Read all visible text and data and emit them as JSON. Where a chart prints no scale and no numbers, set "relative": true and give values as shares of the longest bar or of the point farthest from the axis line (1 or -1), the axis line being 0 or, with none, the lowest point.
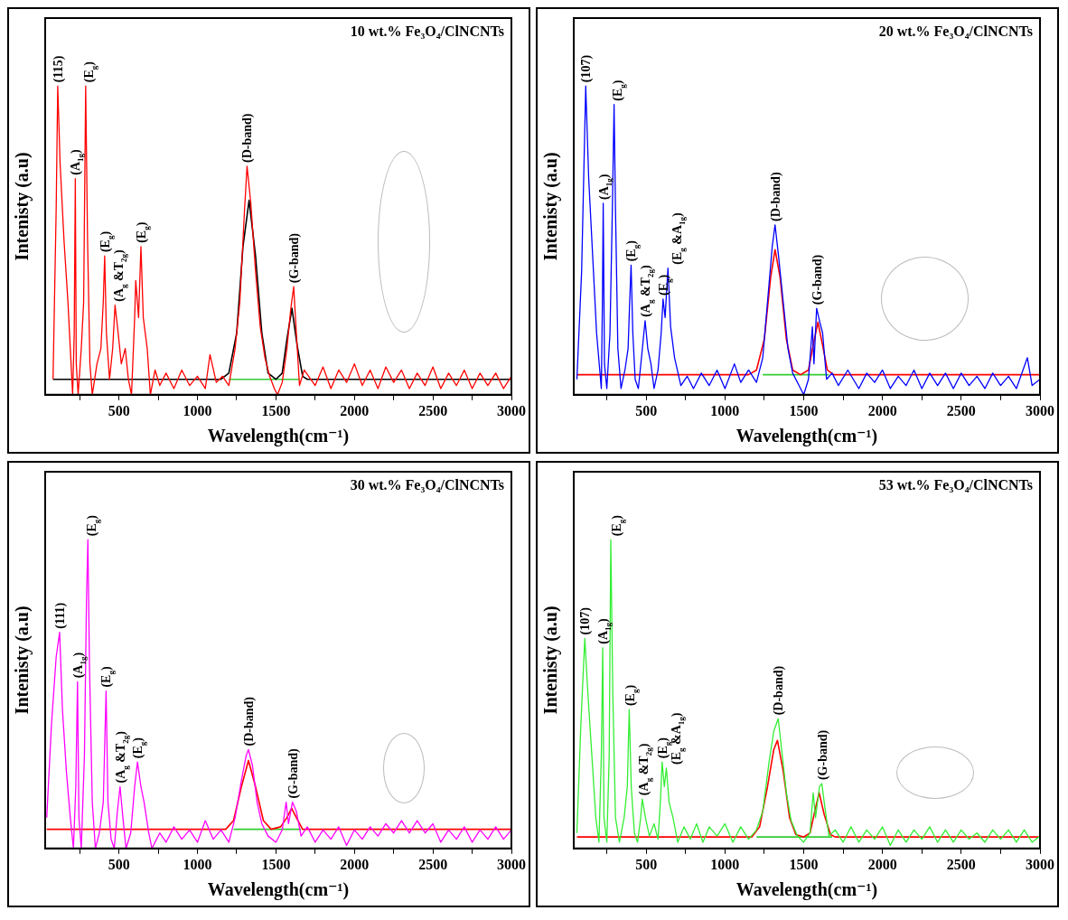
{
  "chart_data": [
    {
      "type": "line",
      "title": "10 wt.% Fe₃O₄/ClNCNTs",
      "xlabel": "Wavelength(cm⁻¹)",
      "ylabel": "Intenisty (a.u)",
      "relative": true,
      "marker": "none",
      "xlim": [
        30,
        3000
      ],
      "xticks": [
        {
          "value": 250,
          "label": null
        },
        500,
        {
          "value": 750,
          "label": null
        },
        1000,
        {
          "value": 1250,
          "label": null
        },
        1500,
        {
          "value": 1750,
          "label": null
        },
        2000,
        {
          "value": 2250,
          "label": null
        },
        2500,
        {
          "value": 2750,
          "label": null
        },
        3000
      ],
      "series": [
        {
          "type": "line",
          "color": "#ff0000",
          "x": [
            80,
            100,
            110,
            125,
            150,
            175,
            195,
            205,
            215,
            222,
            228,
            240,
            260,
            275,
            288,
            300,
            315,
            330,
            360,
            385,
            400,
            409,
            420,
            440,
            460,
            475,
            495,
            515,
            540,
            560,
            580,
            600,
            607,
            625,
            640,
            655,
            680,
            700,
            730,
            760,
            800,
            850,
            900,
            950,
            1000,
            1050,
            1080,
            1120,
            1160,
            1200,
            1240,
            1270,
            1300,
            1316,
            1340,
            1370,
            1400,
            1430,
            1460,
            1490,
            1510,
            1540,
            1570,
            1595,
            1613,
            1630,
            1650,
            1680,
            1750,
            1800,
            1850,
            1900,
            1950,
            2000,
            2050,
            2100,
            2150,
            2200,
            2250,
            2300,
            2350,
            2400,
            2450,
            2500,
            2550,
            2600,
            2650,
            2700,
            2750,
            2800,
            2850,
            2900,
            2950,
            3000
          ],
          "values": [
            0.05,
            0.6,
            1.0,
            0.75,
            0.5,
            0.3,
            0.1,
            0.0,
            0.2,
            0.7,
            0.1,
            0.0,
            0.15,
            0.3,
            1.0,
            0.5,
            0.1,
            0.0,
            0.1,
            0.15,
            0.3,
            0.45,
            0.2,
            0.05,
            0.15,
            0.29,
            0.2,
            0.1,
            0.15,
            0.05,
            0.0,
            0.25,
            0.37,
            0.25,
            0.48,
            0.25,
            0.15,
            0.0,
            0.08,
            0.03,
            0.07,
            0.02,
            0.08,
            0.03,
            0.06,
            0.02,
            0.13,
            0.04,
            0.06,
            0.03,
            0.15,
            0.3,
            0.6,
            0.74,
            0.62,
            0.4,
            0.22,
            0.12,
            0.06,
            0.02,
            0.0,
            0.04,
            0.15,
            0.28,
            0.35,
            0.2,
            0.03,
            0.08,
            0.03,
            0.09,
            0.02,
            0.08,
            0.04,
            0.1,
            0.03,
            0.08,
            0.02,
            0.09,
            0.04,
            0.08,
            0.02,
            0.07,
            0.03,
            0.09,
            0.02,
            0.07,
            0.03,
            0.08,
            0.02,
            0.07,
            0.03,
            0.07,
            0.02,
            0.06
          ]
        },
        {
          "type": "line",
          "color": "#000000",
          "x": [
            80,
            1150,
            1200,
            1250,
            1290,
            1329,
            1370,
            1410,
            1450,
            1500,
            1540,
            1570,
            1602,
            1635,
            1670,
            1700,
            3000
          ],
          "values": [
            0.05,
            0.05,
            0.07,
            0.2,
            0.48,
            0.63,
            0.45,
            0.2,
            0.07,
            0.05,
            0.07,
            0.18,
            0.28,
            0.16,
            0.06,
            0.05,
            0.05
          ]
        },
        {
          "type": "line",
          "color": "#33cc33",
          "x": [
            1200,
            1650
          ],
          "values": [
            0.05,
            0.05
          ]
        }
      ],
      "annotations": [
        {
          "text": "(115)",
          "x": 110,
          "y": 1.0
        },
        {
          "text": "(A$_{1g}$)",
          "x": 222,
          "y": 0.7
        },
        {
          "text": "(E$_{g}$)",
          "x": 288,
          "y": 1.0
        },
        {
          "text": "(E$_{g}$)",
          "x": 409,
          "y": 0.45
        },
        {
          "text": "(A$_{g}$ &T$_{2g}$)",
          "x": 475,
          "y": 0.29
        },
        {
          "text": "(E$_{g}$)",
          "x": 640,
          "y": 0.48
        },
        {
          "text": "(D-band)",
          "x": 1316,
          "y": 0.74
        },
        {
          "text": "(G-band)",
          "x": 1613,
          "y": 0.35
        }
      ]
    },
    {
      "type": "line",
      "title": "20 wt.% Fe₃O₄/ClNCNTs",
      "xlabel": "Wavelength(cm⁻¹)",
      "ylabel": "Intenisty (a.u)",
      "relative": true,
      "marker": "none",
      "xlim": [
        40,
        3000
      ],
      "xticks": [
        {
          "value": 250,
          "label": null
        },
        500,
        {
          "value": 750,
          "label": null
        },
        1000,
        {
          "value": 1250,
          "label": null
        },
        1500,
        {
          "value": 1750,
          "label": null
        },
        2000,
        {
          "value": 2250,
          "label": null
        },
        2500,
        {
          "value": 2750,
          "label": null
        },
        3000
      ],
      "series": [
        {
          "type": "line",
          "color": "#0000ff",
          "x": [
            60,
            90,
            116,
            135,
            160,
            185,
            205,
            215,
            222,
            227,
            235,
            250,
            270,
            285,
            296,
            305,
            320,
            340,
            365,
            385,
            395,
            404,
            415,
            430,
            450,
            470,
            493,
            510,
            530,
            550,
            575,
            595,
            607,
            620,
            638,
            655,
            680,
            720,
            760,
            800,
            850,
            900,
            950,
            1000,
            1060,
            1100,
            1150,
            1200,
            1240,
            1270,
            1300,
            1318,
            1340,
            1370,
            1400,
            1430,
            1470,
            1500,
            1530,
            1555,
            1565,
            1582,
            1600,
            1620,
            1645,
            1680,
            1720,
            1780,
            1850,
            1900,
            1950,
            2000,
            2050,
            2100,
            2150,
            2200,
            2250,
            2300,
            2350,
            2400,
            2450,
            2500,
            2550,
            2600,
            2650,
            2700,
            2750,
            2800,
            2850,
            2920,
            2950,
            3000
          ],
          "values": [
            0.05,
            0.4,
            1.0,
            0.7,
            0.45,
            0.2,
            0.08,
            0.02,
            0.3,
            0.62,
            0.1,
            0.02,
            0.2,
            0.6,
            0.94,
            0.6,
            0.15,
            0.02,
            0.08,
            0.15,
            0.3,
            0.42,
            0.2,
            0.05,
            0.02,
            0.12,
            0.24,
            0.15,
            0.1,
            0.02,
            0.08,
            0.2,
            0.31,
            0.25,
            0.41,
            0.22,
            0.12,
            0.03,
            0.06,
            0.02,
            0.07,
            0.03,
            0.08,
            0.02,
            0.1,
            0.04,
            0.08,
            0.04,
            0.12,
            0.3,
            0.48,
            0.55,
            0.45,
            0.3,
            0.15,
            0.07,
            0.03,
            0.0,
            0.05,
            0.22,
            0.1,
            0.28,
            0.24,
            0.2,
            0.05,
            0.07,
            0.03,
            0.08,
            0.02,
            0.07,
            0.04,
            0.08,
            0.02,
            0.06,
            0.03,
            0.08,
            0.02,
            0.07,
            0.03,
            0.07,
            0.02,
            0.07,
            0.03,
            0.06,
            0.02,
            0.07,
            0.03,
            0.06,
            0.02,
            0.12,
            0.03,
            0.05
          ]
        },
        {
          "type": "line",
          "color": "#ff0000",
          "x": [
            60,
            1150,
            1200,
            1250,
            1290,
            1318,
            1350,
            1390,
            1430,
            1480,
            1530,
            1560,
            1590,
            1620,
            1650,
            1690,
            3000
          ],
          "values": [
            0.065,
            0.065,
            0.08,
            0.18,
            0.38,
            0.47,
            0.38,
            0.18,
            0.08,
            0.065,
            0.08,
            0.16,
            0.235,
            0.16,
            0.08,
            0.065,
            0.065
          ]
        },
        {
          "type": "line",
          "color": "#33cc33",
          "x": [
            1240,
            1660
          ],
          "values": [
            0.065,
            0.065
          ]
        }
      ],
      "annotations": [
        {
          "text": "(107)",
          "x": 116,
          "y": 1.0
        },
        {
          "text": "(A$_{1g}$)",
          "x": 227,
          "y": 0.62
        },
        {
          "text": "(E$_{g}$)",
          "x": 296,
          "y": 0.94
        },
        {
          "text": "(E$_{g}$)",
          "x": 404,
          "y": 0.42
        },
        {
          "text": "(A$_{g}$ &T$_{2g}$)",
          "x": 493,
          "y": 0.24
        },
        {
          "text": "(E$_{g}$)",
          "x": 607,
          "y": 0.31
        },
        {
          "text": "(E$_{g}$ &A$_{1g}$)",
          "x": 638,
          "y": 0.41
        },
        {
          "text": "(D-band)",
          "x": 1318,
          "y": 0.55
        },
        {
          "text": "(G-band)",
          "x": 1582,
          "y": 0.28
        }
      ]
    },
    {
      "type": "line",
      "title": "30 wt.% Fe₃O₄/ClNCNTs",
      "xlabel": "Wavelength(cm⁻¹)",
      "ylabel": "Intenisty (a.u)",
      "relative": true,
      "marker": "none",
      "xlim": [
        30,
        3000
      ],
      "xticks": [
        {
          "value": 250,
          "label": null
        },
        500,
        {
          "value": 750,
          "label": null
        },
        1000,
        {
          "value": 1250,
          "label": null
        },
        1500,
        {
          "value": 1750,
          "label": null
        },
        2000,
        {
          "value": 2250,
          "label": null
        },
        2500,
        {
          "value": 2750,
          "label": null
        },
        3000
      ],
      "series": [
        {
          "type": "line",
          "color": "#ff00ff",
          "x": [
            40,
            70,
            100,
            122,
            140,
            165,
            190,
            210,
            225,
            236,
            245,
            260,
            280,
            293,
            302,
            312,
            330,
            350,
            375,
            400,
            418,
            430,
            450,
            470,
            490,
            507,
            525,
            545,
            575,
            600,
            618,
            640,
            660,
            690,
            710,
            760,
            800,
            850,
            900,
            950,
            1000,
            1050,
            1100,
            1150,
            1200,
            1240,
            1280,
            1310,
            1325,
            1350,
            1380,
            1410,
            1450,
            1500,
            1540,
            1565,
            1580,
            1605,
            1630,
            1660,
            1700,
            1750,
            1800,
            1850,
            1900,
            1950,
            2000,
            2050,
            2100,
            2150,
            2200,
            2250,
            2300,
            2350,
            2400,
            2450,
            2500,
            2550,
            2600,
            2650,
            2700,
            2750,
            2800,
            2850,
            2900,
            2950,
            3000
          ],
          "values": [
            0.1,
            0.4,
            0.62,
            0.7,
            0.45,
            0.25,
            0.1,
            0.0,
            0.2,
            0.54,
            0.1,
            0.0,
            0.3,
            0.8,
            1.0,
            0.6,
            0.15,
            0.0,
            0.05,
            0.15,
            0.51,
            0.15,
            0.03,
            0.0,
            0.12,
            0.2,
            0.1,
            0.0,
            0.05,
            0.2,
            0.28,
            0.2,
            0.15,
            0.05,
            0.0,
            0.05,
            0.02,
            0.07,
            0.03,
            0.06,
            0.02,
            0.09,
            0.03,
            0.06,
            0.02,
            0.1,
            0.22,
            0.3,
            0.32,
            0.27,
            0.15,
            0.08,
            0.04,
            0.02,
            0.06,
            0.15,
            0.08,
            0.15,
            0.12,
            0.04,
            0.07,
            0.02,
            0.06,
            0.03,
            0.07,
            0.01,
            0.06,
            0.03,
            0.07,
            0.04,
            0.08,
            0.05,
            0.09,
            0.05,
            0.09,
            0.05,
            0.08,
            0.02,
            0.06,
            0.03,
            0.07,
            0.02,
            0.06,
            0.03,
            0.07,
            0.03,
            0.06
          ]
        },
        {
          "type": "line",
          "color": "#ff0000",
          "x": [
            40,
            1180,
            1230,
            1280,
            1325,
            1370,
            1420,
            1470,
            1530,
            1570,
            1600,
            1630,
            1670,
            3000
          ],
          "values": [
            0.062,
            0.062,
            0.09,
            0.2,
            0.285,
            0.2,
            0.09,
            0.062,
            0.07,
            0.1,
            0.13,
            0.1,
            0.062,
            0.062
          ]
        },
        {
          "type": "line",
          "color": "#33cc33",
          "x": [
            1230,
            1660
          ],
          "values": [
            0.062,
            0.062
          ]
        }
      ],
      "annotations": [
        {
          "text": "(111)",
          "x": 122,
          "y": 0.7
        },
        {
          "text": "(A$_{1g}$)",
          "x": 236,
          "y": 0.54
        },
        {
          "text": "(E$_{g}$)",
          "x": 302,
          "y": 1.0
        },
        {
          "text": "(E$_{g}$)",
          "x": 418,
          "y": 0.51
        },
        {
          "text": "(A$_{g}$ &T$_{2g}$)",
          "x": 507,
          "y": 0.2
        },
        {
          "text": "(E$_{g}$)",
          "x": 618,
          "y": 0.28
        },
        {
          "text": "(D-band)",
          "x": 1325,
          "y": 0.32
        },
        {
          "text": "(G-band)",
          "x": 1605,
          "y": 0.15
        }
      ]
    },
    {
      "type": "line",
      "title": "53 wt.% Fe₃O₄/ClNCNTs",
      "xlabel": "Wavelength(cm⁻¹)",
      "ylabel": "Intenisty (a.u)",
      "relative": true,
      "marker": "none",
      "xlim": [
        40,
        3000
      ],
      "xticks": [
        {
          "value": 250,
          "label": null
        },
        500,
        {
          "value": 750,
          "label": null
        },
        1000,
        {
          "value": 1250,
          "label": null
        },
        1500,
        {
          "value": 1750,
          "label": null
        },
        2000,
        {
          "value": 2250,
          "label": null
        },
        2500,
        {
          "value": 2750,
          "label": null
        },
        3000
      ],
      "series": [
        {
          "type": "line",
          "color": "#33ee33",
          "x": [
            60,
            85,
            110,
            130,
            155,
            180,
            200,
            215,
            224,
            232,
            250,
            265,
            275,
            288,
            305,
            330,
            360,
            380,
            392,
            405,
            425,
            445,
            465,
            475,
            495,
            520,
            550,
            575,
            590,
            601,
            615,
            628,
            645,
            670,
            700,
            740,
            780,
            820,
            860,
            900,
            950,
            1000,
            1050,
            1100,
            1150,
            1200,
            1240,
            1280,
            1310,
            1338,
            1360,
            1390,
            1420,
            1460,
            1500,
            1540,
            1560,
            1575,
            1600,
            1615,
            1630,
            1660,
            1700,
            1750,
            1800,
            1850,
            1900,
            1950,
            2000,
            2050,
            2100,
            2150,
            2200,
            2250,
            2300,
            2350,
            2400,
            2450,
            2500,
            2550,
            2600,
            2650,
            2700,
            2750,
            2800,
            2850,
            2900,
            2950,
            3000
          ],
          "values": [
            0.05,
            0.4,
            0.68,
            0.5,
            0.3,
            0.1,
            0.02,
            0.3,
            0.65,
            0.1,
            0.02,
            0.3,
            1.0,
            0.5,
            0.1,
            0.02,
            0.1,
            0.2,
            0.45,
            0.2,
            0.05,
            0.02,
            0.1,
            0.16,
            0.1,
            0.04,
            0.08,
            0.03,
            0.15,
            0.28,
            0.2,
            0.26,
            0.15,
            0.1,
            0.02,
            0.07,
            0.03,
            0.08,
            0.02,
            0.07,
            0.04,
            0.08,
            0.02,
            0.07,
            0.03,
            0.06,
            0.12,
            0.28,
            0.38,
            0.42,
            0.32,
            0.18,
            0.09,
            0.04,
            0.02,
            0.05,
            0.18,
            0.1,
            0.2,
            0.21,
            0.15,
            0.04,
            0.06,
            0.02,
            0.07,
            0.02,
            0.06,
            0.03,
            0.07,
            0.01,
            0.06,
            0.02,
            0.06,
            0.03,
            0.07,
            0.02,
            0.06,
            0.02,
            0.06,
            0.03,
            0.05,
            0.02,
            0.06,
            0.03,
            0.06,
            0.02,
            0.06,
            0.02,
            0.04
          ]
        },
        {
          "type": "line",
          "color": "#ff0000",
          "x": [
            60,
            1170,
            1220,
            1270,
            1310,
            1333,
            1370,
            1410,
            1450,
            1500,
            1540,
            1570,
            1598,
            1630,
            1670,
            1700,
            3000
          ],
          "values": [
            0.037,
            0.037,
            0.07,
            0.2,
            0.32,
            0.35,
            0.25,
            0.1,
            0.045,
            0.037,
            0.05,
            0.12,
            0.18,
            0.11,
            0.045,
            0.037,
            0.037
          ]
        },
        {
          "type": "line",
          "color": "#33cc33",
          "x": [
            1200,
            1680
          ],
          "values": [
            0.037,
            0.037
          ]
        }
      ],
      "annotations": [
        {
          "text": "(107)",
          "x": 110,
          "y": 0.68
        },
        {
          "text": "(A$_{1g}$)",
          "x": 224,
          "y": 0.65
        },
        {
          "text": "(E$_{g}$)",
          "x": 275,
          "y": 1.0
        },
        {
          "text": "(E$_{g}$)",
          "x": 392,
          "y": 0.45
        },
        {
          "text": "(A$_{g}$ &T$_{2g}$)",
          "x": 475,
          "y": 0.16
        },
        {
          "text": "(E$_{g}$)",
          "x": 601,
          "y": 0.28
        },
        {
          "text": "(E$_{g}$ &A$_{1g}$)",
          "x": 628,
          "y": 0.26
        },
        {
          "text": "(D-band)",
          "x": 1338,
          "y": 0.42
        },
        {
          "text": "(G-band)",
          "x": 1615,
          "y": 0.21
        }
      ]
    }
  ]
}
